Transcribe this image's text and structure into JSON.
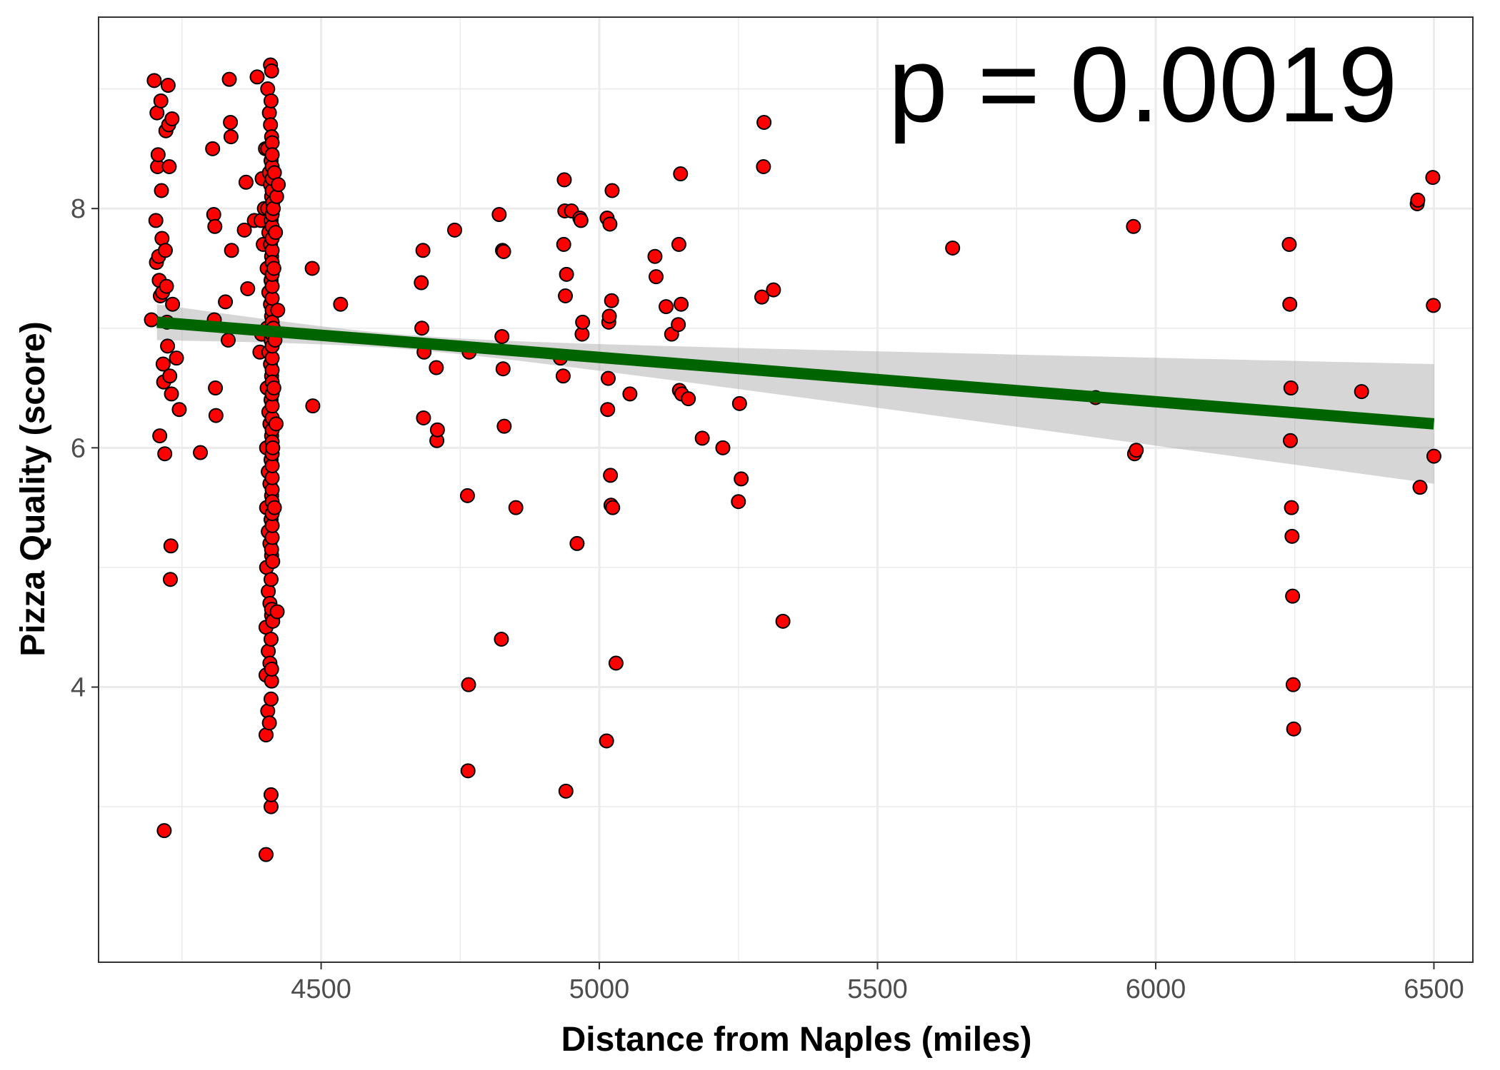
{
  "chart_data": {
    "type": "scatter",
    "xlabel": "Distance from Naples (miles)",
    "ylabel": "Pizza Quality (score)",
    "annotation": "p = 0.0019",
    "xlim": [
      4100,
      6570
    ],
    "ylim": [
      1.7,
      9.6
    ],
    "xticks": [
      4500,
      5000,
      5500,
      6000,
      6500
    ],
    "xtick_labels": [
      "4500",
      "5000",
      "5500",
      "6000",
      "6500"
    ],
    "yticks": [
      4,
      6,
      8
    ],
    "ytick_labels": [
      "4",
      "6",
      "8"
    ],
    "grid": true,
    "colors": {
      "point_fill": "#ff0000",
      "point_stroke": "#000000",
      "fit_line": "#006400",
      "ci_band": "#999999"
    },
    "regression": {
      "x": [
        4205,
        6500
      ],
      "y": [
        7.05,
        6.2
      ],
      "ci_upper_at_ends": [
        7.2,
        6.7
      ],
      "ci_lower_at_ends": [
        6.9,
        5.7
      ]
    },
    "points": [
      [
        4195,
        7.07
      ],
      [
        4200,
        9.07
      ],
      [
        4203,
        7.9
      ],
      [
        4204,
        7.55
      ],
      [
        4205,
        8.8
      ],
      [
        4206,
        8.35
      ],
      [
        4207,
        8.45
      ],
      [
        4208,
        7.6
      ],
      [
        4209,
        7.4
      ],
      [
        4210,
        6.1
      ],
      [
        4211,
        7.27
      ],
      [
        4212,
        8.9
      ],
      [
        4213,
        8.15
      ],
      [
        4214,
        7.75
      ],
      [
        4215,
        7.3
      ],
      [
        4216,
        6.7
      ],
      [
        4217,
        6.55
      ],
      [
        4218,
        2.8
      ],
      [
        4219,
        5.95
      ],
      [
        4220,
        7.65
      ],
      [
        4221,
        8.65
      ],
      [
        4222,
        7.35
      ],
      [
        4223,
        7.05
      ],
      [
        4224,
        6.85
      ],
      [
        4225,
        9.03
      ],
      [
        4226,
        8.7
      ],
      [
        4227,
        8.35
      ],
      [
        4228,
        6.6
      ],
      [
        4229,
        4.9
      ],
      [
        4230,
        5.18
      ],
      [
        4231,
        6.45
      ],
      [
        4232,
        8.75
      ],
      [
        4233,
        7.2
      ],
      [
        4240,
        6.75
      ],
      [
        4245,
        6.32
      ],
      [
        4283,
        5.96
      ],
      [
        4305,
        8.5
      ],
      [
        4307,
        7.95
      ],
      [
        4308,
        7.07
      ],
      [
        4309,
        7.85
      ],
      [
        4310,
        6.5
      ],
      [
        4311,
        6.27
      ],
      [
        4328,
        7.22
      ],
      [
        4333,
        6.9
      ],
      [
        4335,
        9.08
      ],
      [
        4337,
        8.72
      ],
      [
        4338,
        8.6
      ],
      [
        4339,
        7.65
      ],
      [
        4362,
        7.82
      ],
      [
        4365,
        8.22
      ],
      [
        4368,
        7.33
      ],
      [
        4380,
        7.9
      ],
      [
        4385,
        9.1
      ],
      [
        4390,
        6.8
      ],
      [
        4392,
        7.9
      ],
      [
        4393,
        6.95
      ],
      [
        4394,
        8.25
      ],
      [
        4396,
        7.7
      ],
      [
        4398,
        8.0
      ],
      [
        4400,
        8.5
      ],
      [
        4401,
        3.6
      ],
      [
        4401,
        2.6
      ],
      [
        4401,
        4.1
      ],
      [
        4401,
        4.5
      ],
      [
        4402,
        5.0
      ],
      [
        4402,
        5.5
      ],
      [
        4402,
        6.0
      ],
      [
        4403,
        6.5
      ],
      [
        4403,
        7.0
      ],
      [
        4403,
        7.5
      ],
      [
        4404,
        8.0
      ],
      [
        4404,
        8.5
      ],
      [
        4404,
        9.0
      ],
      [
        4404,
        3.8
      ],
      [
        4405,
        4.3
      ],
      [
        4405,
        4.8
      ],
      [
        4405,
        5.3
      ],
      [
        4405,
        5.8
      ],
      [
        4406,
        6.3
      ],
      [
        4406,
        6.8
      ],
      [
        4406,
        7.3
      ],
      [
        4406,
        7.8
      ],
      [
        4407,
        8.3
      ],
      [
        4407,
        8.8
      ],
      [
        4407,
        3.7
      ],
      [
        4408,
        4.2
      ],
      [
        4408,
        4.7
      ],
      [
        4408,
        5.2
      ],
      [
        4408,
        5.7
      ],
      [
        4408,
        6.2
      ],
      [
        4409,
        6.7
      ],
      [
        4409,
        7.2
      ],
      [
        4409,
        7.7
      ],
      [
        4409,
        8.2
      ],
      [
        4409,
        8.7
      ],
      [
        4409,
        9.2
      ],
      [
        4410,
        3.9
      ],
      [
        4410,
        4.4
      ],
      [
        4410,
        4.9
      ],
      [
        4410,
        5.4
      ],
      [
        4410,
        5.9
      ],
      [
        4410,
        6.4
      ],
      [
        4410,
        6.9
      ],
      [
        4410,
        7.4
      ],
      [
        4410,
        7.9
      ],
      [
        4410,
        8.4
      ],
      [
        4410,
        8.9
      ],
      [
        4410,
        3.0
      ],
      [
        4410,
        3.1
      ],
      [
        4411,
        4.05
      ],
      [
        4411,
        4.6
      ],
      [
        4411,
        5.1
      ],
      [
        4411,
        5.6
      ],
      [
        4411,
        6.1
      ],
      [
        4411,
        6.6
      ],
      [
        4411,
        7.1
      ],
      [
        4411,
        7.6
      ],
      [
        4411,
        8.1
      ],
      [
        4411,
        8.6
      ],
      [
        4411,
        9.15
      ],
      [
        4411,
        4.15
      ],
      [
        4411,
        4.65
      ],
      [
        4411,
        5.15
      ],
      [
        4412,
        5.65
      ],
      [
        4412,
        6.15
      ],
      [
        4412,
        6.65
      ],
      [
        4412,
        7.15
      ],
      [
        4412,
        7.65
      ],
      [
        4412,
        8.15
      ],
      [
        4412,
        8.55
      ],
      [
        4412,
        5.25
      ],
      [
        4412,
        5.75
      ],
      [
        4412,
        6.25
      ],
      [
        4412,
        6.75
      ],
      [
        4412,
        7.25
      ],
      [
        4412,
        7.75
      ],
      [
        4412,
        8.25
      ],
      [
        4412,
        5.35
      ],
      [
        4412,
        5.85
      ],
      [
        4412,
        6.35
      ],
      [
        4412,
        6.85
      ],
      [
        4412,
        7.35
      ],
      [
        4412,
        7.85
      ],
      [
        4412,
        8.35
      ],
      [
        4412,
        5.45
      ],
      [
        4412,
        5.95
      ],
      [
        4412,
        6.45
      ],
      [
        4412,
        6.95
      ],
      [
        4412,
        7.45
      ],
      [
        4412,
        7.95
      ],
      [
        4412,
        8.45
      ],
      [
        4412,
        5.55
      ],
      [
        4412,
        6.05
      ],
      [
        4412,
        6.55
      ],
      [
        4412,
        7.05
      ],
      [
        4412,
        7.55
      ],
      [
        4413,
        8.05
      ],
      [
        4413,
        4.55
      ],
      [
        4413,
        5.05
      ],
      [
        4413,
        6.0
      ],
      [
        4414,
        7.0
      ],
      [
        4414,
        8.0
      ],
      [
        4415,
        6.5
      ],
      [
        4415,
        7.5
      ],
      [
        4416,
        5.5
      ],
      [
        4416,
        8.3
      ],
      [
        4417,
        6.9
      ],
      [
        4418,
        7.8
      ],
      [
        4419,
        6.2
      ],
      [
        4420,
        8.1
      ],
      [
        4421,
        4.63
      ],
      [
        4422,
        7.15
      ],
      [
        4423,
        8.2
      ],
      [
        4484,
        7.5
      ],
      [
        4485,
        6.35
      ],
      [
        4535,
        7.2
      ],
      [
        4680,
        7.38
      ],
      [
        4681,
        7.0
      ],
      [
        4683,
        7.65
      ],
      [
        4684,
        6.25
      ],
      [
        4685,
        6.8
      ],
      [
        4707,
        6.67
      ],
      [
        4708,
        6.06
      ],
      [
        4709,
        6.15
      ],
      [
        4740,
        7.82
      ],
      [
        4763,
        5.6
      ],
      [
        4764,
        3.3
      ],
      [
        4765,
        4.02
      ],
      [
        4766,
        6.8
      ],
      [
        4820,
        7.95
      ],
      [
        4824,
        4.4
      ],
      [
        4825,
        6.93
      ],
      [
        4826,
        7.65
      ],
      [
        4827,
        6.66
      ],
      [
        4828,
        7.64
      ],
      [
        4829,
        6.18
      ],
      [
        4850,
        5.5
      ],
      [
        4930,
        6.75
      ],
      [
        4935,
        6.6
      ],
      [
        4936,
        7.7
      ],
      [
        4937,
        8.24
      ],
      [
        4938,
        7.98
      ],
      [
        4939,
        7.27
      ],
      [
        4940,
        3.13
      ],
      [
        4941,
        7.45
      ],
      [
        4950,
        7.98
      ],
      [
        4960,
        5.2
      ],
      [
        4965,
        7.92
      ],
      [
        4967,
        7.9
      ],
      [
        4969,
        6.95
      ],
      [
        4970,
        7.05
      ],
      [
        5013,
        3.55
      ],
      [
        5014,
        7.92
      ],
      [
        5015,
        6.32
      ],
      [
        5016,
        6.58
      ],
      [
        5017,
        7.05
      ],
      [
        5018,
        7.1
      ],
      [
        5019,
        7.87
      ],
      [
        5020,
        5.77
      ],
      [
        5021,
        5.52
      ],
      [
        5022,
        7.23
      ],
      [
        5023,
        8.15
      ],
      [
        5024,
        5.5
      ],
      [
        5030,
        4.2
      ],
      [
        5055,
        6.45
      ],
      [
        5100,
        7.6
      ],
      [
        5102,
        7.43
      ],
      [
        5120,
        7.18
      ],
      [
        5130,
        6.95
      ],
      [
        5142,
        7.03
      ],
      [
        5143,
        7.7
      ],
      [
        5144,
        6.48
      ],
      [
        5146,
        8.29
      ],
      [
        5147,
        7.2
      ],
      [
        5148,
        6.45
      ],
      [
        5160,
        6.41
      ],
      [
        5185,
        6.08
      ],
      [
        5222,
        6.0
      ],
      [
        5250,
        5.55
      ],
      [
        5252,
        6.37
      ],
      [
        5255,
        5.74
      ],
      [
        5292,
        7.26
      ],
      [
        5295,
        8.35
      ],
      [
        5296,
        8.72
      ],
      [
        5313,
        7.32
      ],
      [
        5330,
        4.55
      ],
      [
        5635,
        7.67
      ],
      [
        5892,
        6.42
      ],
      [
        5960,
        7.85
      ],
      [
        5962,
        5.95
      ],
      [
        5965,
        5.98
      ],
      [
        6240,
        7.7
      ],
      [
        6241,
        7.2
      ],
      [
        6242,
        6.06
      ],
      [
        6243,
        6.5
      ],
      [
        6244,
        5.5
      ],
      [
        6245,
        5.26
      ],
      [
        6246,
        4.76
      ],
      [
        6247,
        4.02
      ],
      [
        6248,
        3.65
      ],
      [
        6370,
        6.47
      ],
      [
        6470,
        8.04
      ],
      [
        6471,
        8.07
      ],
      [
        6475,
        5.67
      ],
      [
        6498,
        8.26
      ],
      [
        6499,
        7.19
      ],
      [
        6500,
        5.93
      ]
    ]
  }
}
